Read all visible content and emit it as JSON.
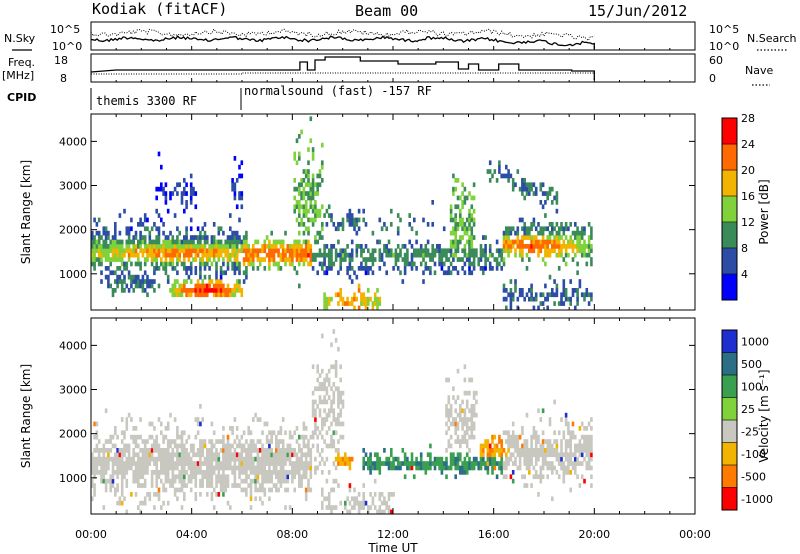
{
  "header": {
    "station": "Kodiak (fitACF)",
    "beam": "Beam 00",
    "date": "15/Jun/2012"
  },
  "top_labels": {
    "nsky": "N.Sky",
    "nsearch": "N.Search",
    "freq": "Freq.",
    "freq_unit": "[MHz]",
    "nave": "Nave",
    "cpid": "CPID",
    "noise_ticks_left": [
      "10^5",
      "10^0"
    ],
    "noise_ticks_right": [
      "10^5",
      "10^0"
    ],
    "freq_ticks": [
      "18",
      "8"
    ],
    "nave_ticks": [
      "60",
      "0"
    ]
  },
  "cpid_segments": [
    {
      "label": "themis 3300 RF",
      "start_hour": 0
    },
    {
      "label": "normalsound (fast) -157 RF",
      "start_hour": 6
    }
  ],
  "x_axis": {
    "label": "Time UT",
    "ticks": [
      "00:00",
      "04:00",
      "08:00",
      "12:00",
      "16:00",
      "20:00",
      "00:00"
    ],
    "range_hours": [
      0,
      24
    ],
    "data_end_hour": 20
  },
  "y_axis": {
    "label": "Slant Range [km]",
    "ticks": [
      "1000",
      "2000",
      "3000",
      "4000"
    ],
    "range_km": [
      180,
      4620
    ]
  },
  "power_colorbar": {
    "title": "Power [dB]",
    "labels": [
      "4",
      "8",
      "12",
      "16",
      "20",
      "24",
      "28"
    ],
    "colors": [
      "#0000ff",
      "#2c4ca6",
      "#3a8a5a",
      "#7fd23a",
      "#f2b400",
      "#ff6a00",
      "#ff0000"
    ]
  },
  "velocity_colorbar": {
    "title": "Velocity [m s⁻¹]",
    "labels": [
      "1000",
      "500",
      "100",
      "25",
      "-25",
      "-100",
      "-500",
      "-1000"
    ],
    "colors": [
      "#1e2fd0",
      "#2b6f86",
      "#3aa050",
      "#7fd23a",
      "#c8c8c0",
      "#f2b400",
      "#ff7a00",
      "#ff0000"
    ]
  },
  "chart_data": {
    "type": "heatmap",
    "panels": [
      {
        "name": "Power",
        "units": "dB",
        "regions": [
          {
            "t0": 0.0,
            "t1": 6.0,
            "r0": 1450,
            "r1": 1850,
            "value": 14
          },
          {
            "t0": 0.0,
            "t1": 6.0,
            "r0": 1150,
            "r1": 1450,
            "value": 8
          },
          {
            "t0": 3.3,
            "t1": 6.0,
            "r0": 500,
            "r1": 800,
            "value": 26
          },
          {
            "t0": 6.0,
            "t1": 8.5,
            "r0": 1300,
            "r1": 1700,
            "value": 22
          },
          {
            "t0": 13.0,
            "t1": 15.0,
            "r0": 1400,
            "r1": 1700,
            "value": 12
          },
          {
            "t0": 16.8,
            "t1": 20.0,
            "r0": 1450,
            "r1": 1750,
            "value": 22
          }
        ]
      },
      {
        "name": "Velocity",
        "units": "m/s",
        "regions": [
          {
            "t0": 0.0,
            "t1": 8.5,
            "r0": 900,
            "r1": 1900,
            "value": 0
          },
          {
            "t0": 10.7,
            "t1": 16.3,
            "r0": 1200,
            "r1": 1500,
            "value": 80
          },
          {
            "t0": 9.7,
            "t1": 10.3,
            "r0": 1300,
            "r1": 1500,
            "value": -200
          },
          {
            "t0": 15.5,
            "t1": 16.5,
            "r0": 1450,
            "r1": 1800,
            "value": -150
          },
          {
            "t0": 16.5,
            "t1": 20.0,
            "r0": 1500,
            "r1": 1900,
            "value": 0
          }
        ]
      }
    ]
  }
}
